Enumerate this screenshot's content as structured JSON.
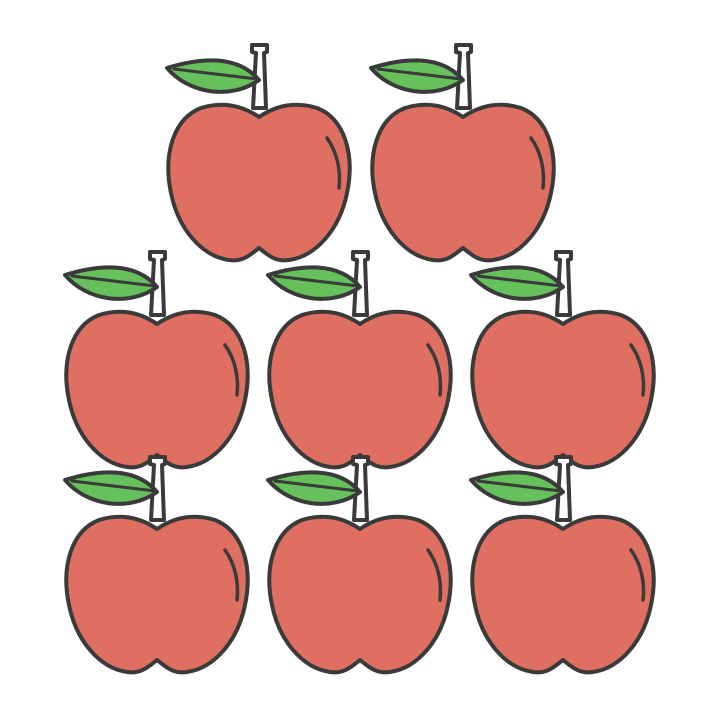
{
  "illustration": {
    "subject": "apple-icon",
    "count": 8,
    "rows": [
      2,
      3,
      3
    ],
    "colors": {
      "background": "#ffffff",
      "apple_fill": "#de6f61",
      "leaf_fill": "#66c05c",
      "stem_fill": "#ffffff",
      "outline": "#3a3a3a"
    }
  }
}
